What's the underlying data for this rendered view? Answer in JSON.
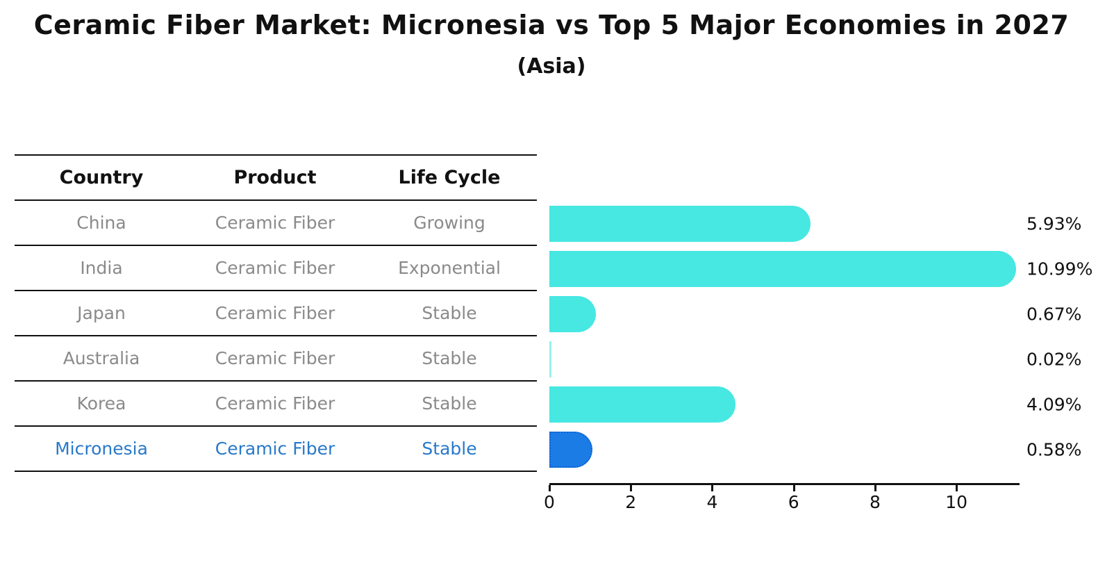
{
  "header": {
    "title": "Ceramic Fiber Market: Micronesia vs Top 5 Major Economies in 2027",
    "subtitle": "(Asia)"
  },
  "table": {
    "headers": [
      "Country",
      "Product",
      "Life Cycle"
    ],
    "rows": [
      {
        "country": "China",
        "product": "Ceramic Fiber",
        "life_cycle": "Growing",
        "highlight": false
      },
      {
        "country": "India",
        "product": "Ceramic Fiber",
        "life_cycle": "Exponential",
        "highlight": false
      },
      {
        "country": "Japan",
        "product": "Ceramic Fiber",
        "life_cycle": "Stable",
        "highlight": false
      },
      {
        "country": "Australia",
        "product": "Ceramic Fiber",
        "life_cycle": "Stable",
        "highlight": false
      },
      {
        "country": "Korea",
        "product": "Ceramic Fiber",
        "life_cycle": "Stable",
        "highlight": false
      },
      {
        "country": "Micronesia",
        "product": "Ceramic Fiber",
        "life_cycle": "Stable",
        "highlight": true
      }
    ]
  },
  "chart_data": {
    "type": "bar",
    "orientation": "horizontal",
    "title": "Ceramic Fiber Market: Micronesia vs Top 5 Major Economies in 2027",
    "subtitle": "(Asia)",
    "categories": [
      "China",
      "India",
      "Japan",
      "Australia",
      "Korea",
      "Micronesia"
    ],
    "values": [
      5.93,
      10.99,
      0.67,
      0.02,
      4.09,
      0.58
    ],
    "value_labels": [
      "5.93%",
      "10.99%",
      "0.67%",
      "0.02%",
      "4.09%",
      "0.58%"
    ],
    "xlabel": "",
    "ylabel": "",
    "xlim": [
      0,
      11.55
    ],
    "x_ticks": [
      0,
      2,
      4,
      6,
      8,
      10
    ],
    "grid": false,
    "legend": false,
    "highlight_index": 5,
    "bar_color": "#47e7e2",
    "highlight_bar_color": "#1c7ce6"
  },
  "colors": {
    "background": "#ffffff",
    "text_primary": "#111111",
    "text_muted": "#8a8a8a",
    "text_highlight": "#2979c9",
    "bar_cyan": "#47e7e2",
    "bar_blue": "#1c7ce6",
    "axis": "#111111"
  }
}
